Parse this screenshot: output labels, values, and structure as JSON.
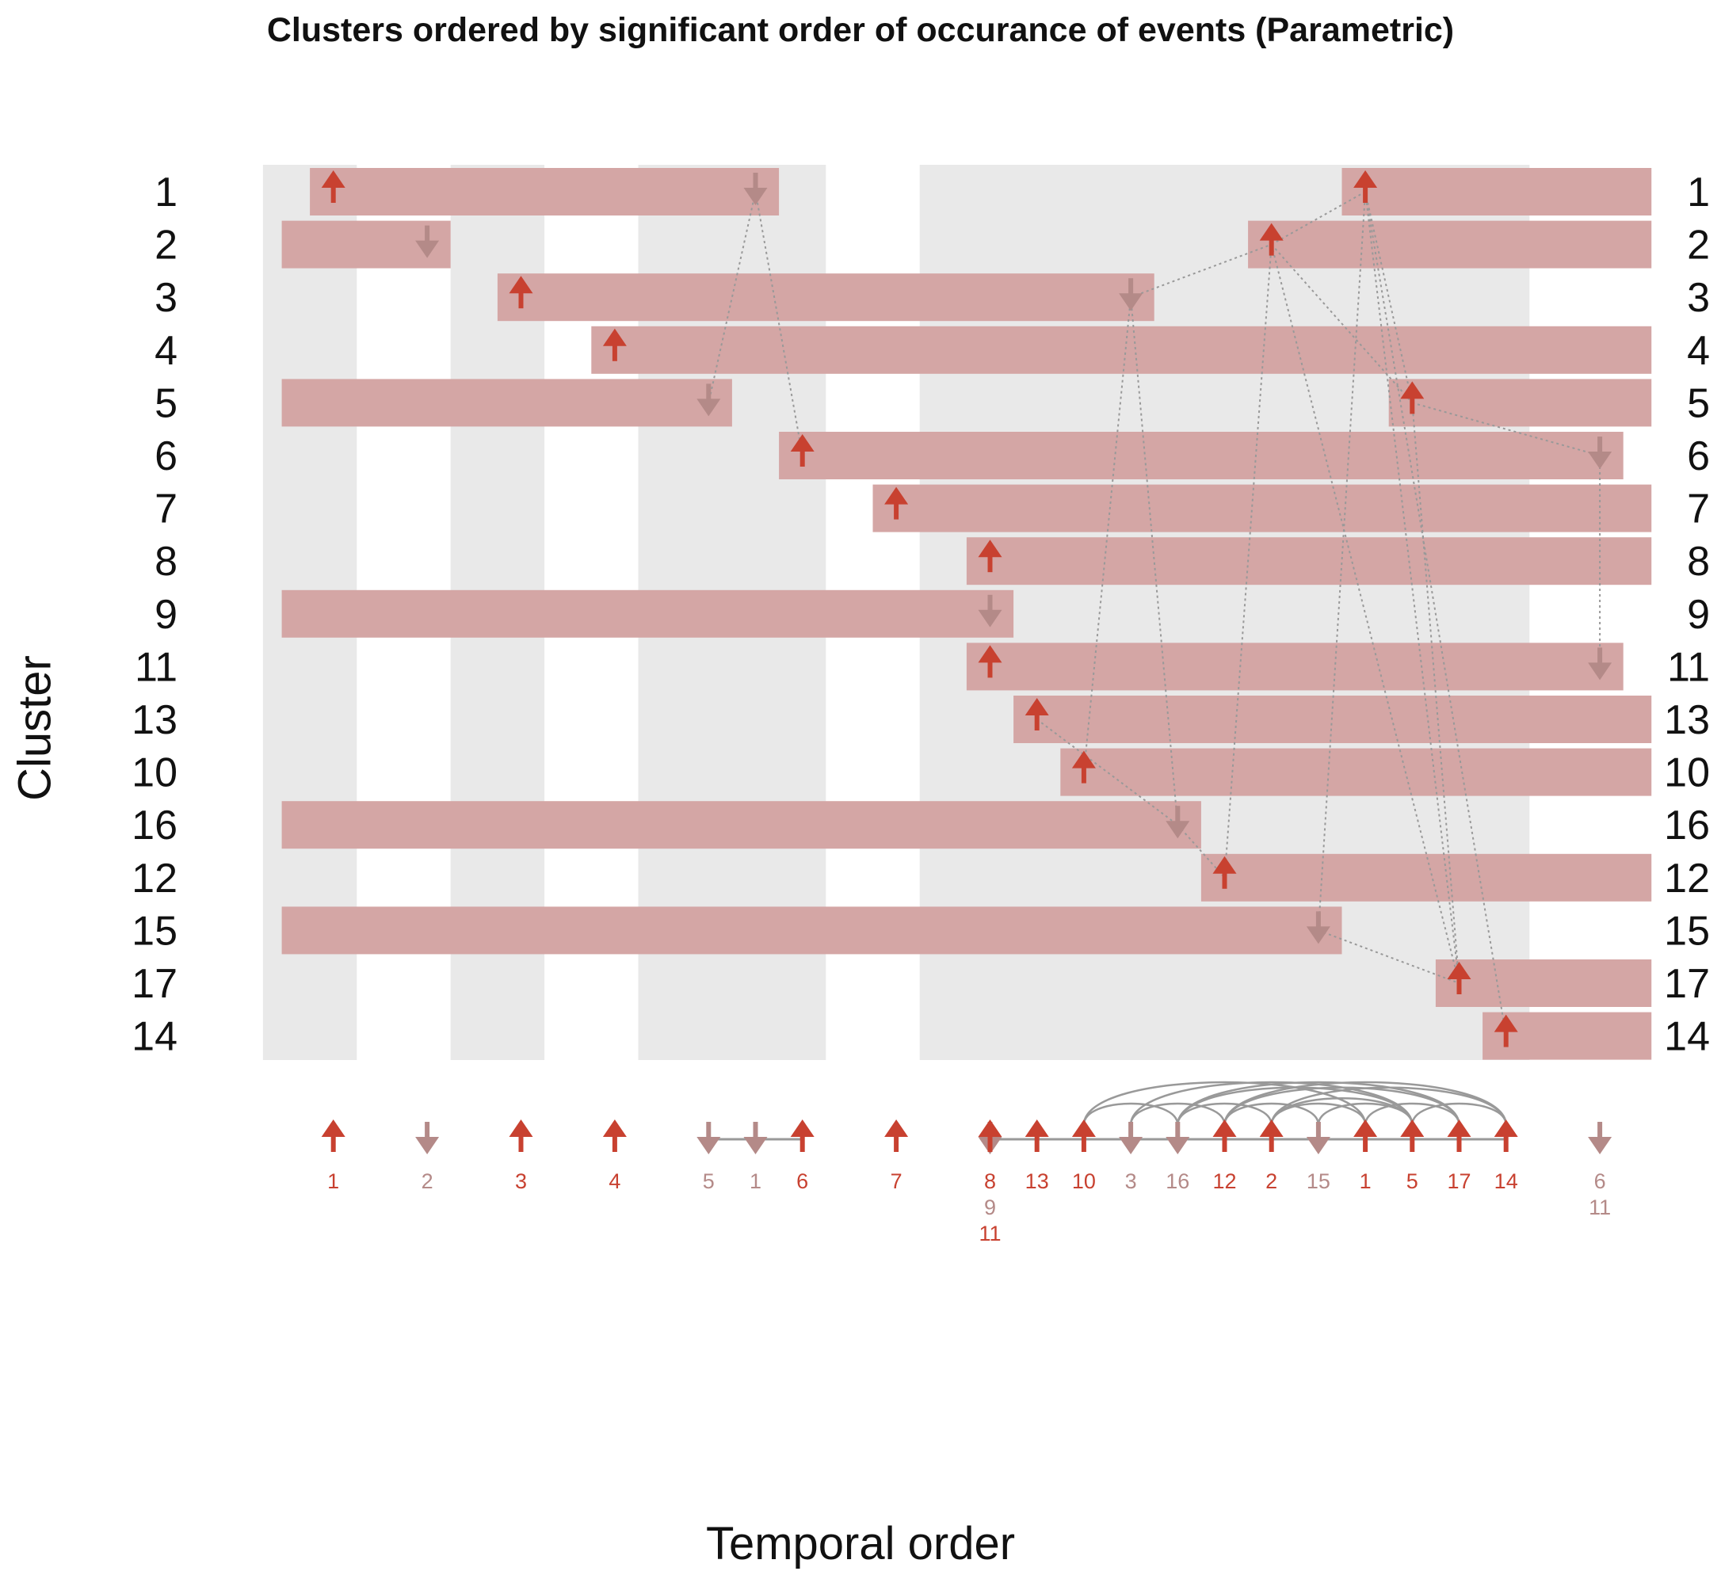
{
  "chart_data": {
    "type": "timeline",
    "title": "Clusters ordered by significant order of occurance of events (Parametric)",
    "xlabel": "Temporal order",
    "ylabel": "Cluster",
    "grid": "alternating grey vertical bands",
    "colors": {
      "up_arrow": "#c84130",
      "down_arrow": "#b48a88",
      "bar": "#d4a6a5",
      "band": "#e9e9e9",
      "connector": "#999999"
    },
    "positions": [
      "1",
      "2",
      "3",
      "4",
      "5",
      "6",
      "7",
      "8",
      "9",
      "10",
      "11",
      "12",
      "13",
      "14",
      "15",
      "16",
      "17",
      "18",
      "19",
      "20",
      "21",
      "22",
      "23",
      "24",
      "25",
      "26",
      "27",
      "28",
      "29"
    ],
    "clusters": [
      "1",
      "2",
      "3",
      "4",
      "5",
      "6",
      "7",
      "8",
      "9",
      "11",
      "13",
      "10",
      "16",
      "12",
      "15",
      "17",
      "14"
    ],
    "events": [
      {
        "cluster": "1",
        "direction": "up",
        "position": 2
      },
      {
        "cluster": "2",
        "direction": "down",
        "position": 4
      },
      {
        "cluster": "3",
        "direction": "up",
        "position": 6
      },
      {
        "cluster": "4",
        "direction": "up",
        "position": 8
      },
      {
        "cluster": "5",
        "direction": "down",
        "position": 10
      },
      {
        "cluster": "1",
        "direction": "down",
        "position": 11
      },
      {
        "cluster": "6",
        "direction": "up",
        "position": 12
      },
      {
        "cluster": "7",
        "direction": "up",
        "position": 14
      },
      {
        "cluster": "8",
        "direction": "up",
        "position": 16
      },
      {
        "cluster": "9",
        "direction": "down",
        "position": 16
      },
      {
        "cluster": "11",
        "direction": "up",
        "position": 16
      },
      {
        "cluster": "13",
        "direction": "up",
        "position": 17
      },
      {
        "cluster": "10",
        "direction": "up",
        "position": 18
      },
      {
        "cluster": "3",
        "direction": "down",
        "position": 19
      },
      {
        "cluster": "16",
        "direction": "down",
        "position": 20
      },
      {
        "cluster": "12",
        "direction": "up",
        "position": 21
      },
      {
        "cluster": "2",
        "direction": "up",
        "position": 22
      },
      {
        "cluster": "15",
        "direction": "down",
        "position": 23
      },
      {
        "cluster": "1",
        "direction": "up",
        "position": 24
      },
      {
        "cluster": "5",
        "direction": "up",
        "position": 25
      },
      {
        "cluster": "17",
        "direction": "up",
        "position": 26
      },
      {
        "cluster": "14",
        "direction": "up",
        "position": 27
      },
      {
        "cluster": "6",
        "direction": "down",
        "position": 29
      },
      {
        "cluster": "11",
        "direction": "down",
        "position": 29
      }
    ],
    "bars": [
      {
        "cluster": "1",
        "from": 1.5,
        "to": 11.5
      },
      {
        "cluster": "1",
        "from": 23.5,
        "to": 30.1
      },
      {
        "cluster": "2",
        "from": 0.9,
        "to": 4.5
      },
      {
        "cluster": "2",
        "from": 21.5,
        "to": 30.1
      },
      {
        "cluster": "3",
        "from": 5.5,
        "to": 19.5
      },
      {
        "cluster": "4",
        "from": 7.5,
        "to": 30.1
      },
      {
        "cluster": "5",
        "from": 0.9,
        "to": 10.5
      },
      {
        "cluster": "5",
        "from": 24.5,
        "to": 30.1
      },
      {
        "cluster": "6",
        "from": 11.5,
        "to": 29.5
      },
      {
        "cluster": "7",
        "from": 13.5,
        "to": 30.1
      },
      {
        "cluster": "8",
        "from": 15.5,
        "to": 30.1
      },
      {
        "cluster": "9",
        "from": 0.9,
        "to": 16.5
      },
      {
        "cluster": "11",
        "from": 15.5,
        "to": 29.5
      },
      {
        "cluster": "13",
        "from": 16.5,
        "to": 30.1
      },
      {
        "cluster": "10",
        "from": 17.5,
        "to": 30.1
      },
      {
        "cluster": "16",
        "from": 0.9,
        "to": 20.5
      },
      {
        "cluster": "12",
        "from": 20.5,
        "to": 30.1
      },
      {
        "cluster": "15",
        "from": 0.9,
        "to": 23.5
      },
      {
        "cluster": "17",
        "from": 25.5,
        "to": 30.1
      },
      {
        "cluster": "14",
        "from": 26.5,
        "to": 30.1
      }
    ],
    "bands": [
      [
        1,
        2
      ],
      [
        5,
        6
      ],
      [
        9,
        12
      ],
      [
        15,
        27
      ]
    ],
    "timeline_links": [
      [
        10,
        11
      ],
      [
        11,
        12
      ],
      [
        16,
        17
      ],
      [
        17,
        18
      ],
      [
        18,
        19
      ],
      [
        19,
        20
      ],
      [
        20,
        21
      ],
      [
        21,
        22
      ],
      [
        22,
        23
      ],
      [
        23,
        24
      ],
      [
        24,
        25
      ],
      [
        25,
        26
      ],
      [
        26,
        27
      ]
    ],
    "timeline_arcs": [
      [
        18,
        20
      ],
      [
        19,
        21
      ],
      [
        20,
        22
      ],
      [
        21,
        23
      ],
      [
        22,
        24
      ],
      [
        23,
        25
      ],
      [
        24,
        26
      ],
      [
        25,
        27
      ],
      [
        18,
        24
      ],
      [
        19,
        25
      ],
      [
        20,
        26
      ],
      [
        21,
        27
      ],
      [
        22,
        27
      ],
      [
        20,
        25
      ],
      [
        21,
        26
      ],
      [
        22,
        25
      ]
    ],
    "dependency_links": [
      {
        "from": 11,
        "from_cluster": "1",
        "to": 12,
        "to_cluster": "6"
      },
      {
        "from": 11,
        "from_cluster": "1",
        "to": 10,
        "to_cluster": "5"
      },
      {
        "from": 19,
        "from_cluster": "3",
        "to": 22,
        "to_cluster": "2"
      },
      {
        "from": 19,
        "from_cluster": "3",
        "to": 20,
        "to_cluster": "16"
      },
      {
        "from": 19,
        "from_cluster": "3",
        "to": 18,
        "to_cluster": "10"
      },
      {
        "from": 22,
        "from_cluster": "2",
        "to": 24,
        "to_cluster": "1"
      },
      {
        "from": 22,
        "from_cluster": "2",
        "to": 21,
        "to_cluster": "12"
      },
      {
        "from": 22,
        "from_cluster": "2",
        "to": 25,
        "to_cluster": "5"
      },
      {
        "from": 22,
        "from_cluster": "2",
        "to": 26,
        "to_cluster": "17"
      },
      {
        "from": 24,
        "from_cluster": "1",
        "to": 27,
        "to_cluster": "14"
      },
      {
        "from": 24,
        "from_cluster": "1",
        "to": 26,
        "to_cluster": "17"
      },
      {
        "from": 24,
        "from_cluster": "1",
        "to": 25,
        "to_cluster": "5"
      },
      {
        "from": 24,
        "from_cluster": "1",
        "to": 23,
        "to_cluster": "15"
      },
      {
        "from": 25,
        "from_cluster": "5",
        "to": 26,
        "to_cluster": "17"
      },
      {
        "from": 25,
        "from_cluster": "5",
        "to": 29,
        "to_cluster": "6"
      },
      {
        "from": 20,
        "from_cluster": "16",
        "to": 21,
        "to_cluster": "12"
      },
      {
        "from": 23,
        "from_cluster": "15",
        "to": 26,
        "to_cluster": "17"
      },
      {
        "from": 17,
        "from_cluster": "13",
        "to": 20,
        "to_cluster": "16"
      },
      {
        "from": 29,
        "from_cluster": "6",
        "to": 29,
        "to_cluster": "11"
      }
    ]
  }
}
